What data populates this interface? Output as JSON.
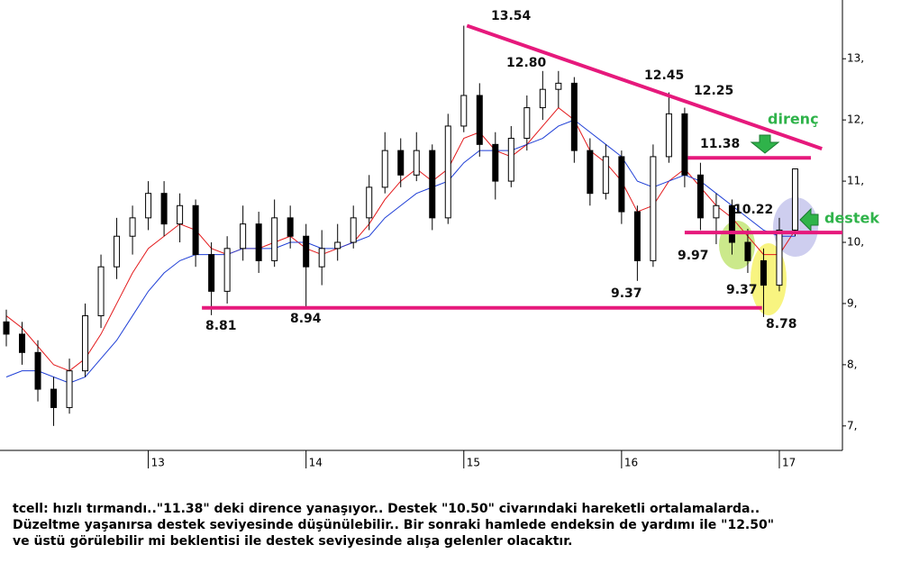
{
  "chart_data": {
    "type": "candlestick",
    "x": [
      12.1,
      12.2,
      12.3,
      12.4,
      12.5,
      12.6,
      12.7,
      12.8,
      12.9,
      13.0,
      13.1,
      13.2,
      13.3,
      13.4,
      13.5,
      13.6,
      13.7,
      13.8,
      13.9,
      14.0,
      14.1,
      14.2,
      14.3,
      14.4,
      14.5,
      14.6,
      14.7,
      14.8,
      14.9,
      15.0,
      15.1,
      15.2,
      15.3,
      15.4,
      15.5,
      15.6,
      15.7,
      15.8,
      15.9,
      16.0,
      16.1,
      16.2,
      16.3,
      16.4,
      16.5,
      16.6,
      16.7,
      16.8,
      16.9,
      17.0,
      17.1
    ],
    "ohlc": [
      [
        8.7,
        8.9,
        8.3,
        8.5
      ],
      [
        8.5,
        8.7,
        8.0,
        8.2
      ],
      [
        8.2,
        8.4,
        7.4,
        7.6
      ],
      [
        7.6,
        7.8,
        7.0,
        7.3
      ],
      [
        7.3,
        8.1,
        7.2,
        7.9
      ],
      [
        7.9,
        9.0,
        7.8,
        8.8
      ],
      [
        8.8,
        9.8,
        8.6,
        9.6
      ],
      [
        9.6,
        10.4,
        9.4,
        10.1
      ],
      [
        10.1,
        10.6,
        9.8,
        10.4
      ],
      [
        10.4,
        11.0,
        10.2,
        10.8
      ],
      [
        10.8,
        11.0,
        10.1,
        10.3
      ],
      [
        10.3,
        10.8,
        10.0,
        10.6
      ],
      [
        10.6,
        10.7,
        9.6,
        9.8
      ],
      [
        9.8,
        10.0,
        8.81,
        9.2
      ],
      [
        9.2,
        10.1,
        9.0,
        9.9
      ],
      [
        9.9,
        10.6,
        9.7,
        10.3
      ],
      [
        10.3,
        10.5,
        9.5,
        9.7
      ],
      [
        9.7,
        10.7,
        9.6,
        10.4
      ],
      [
        10.4,
        10.6,
        9.9,
        10.1
      ],
      [
        10.1,
        10.3,
        8.94,
        9.6
      ],
      [
        9.6,
        10.2,
        9.3,
        9.9
      ],
      [
        9.9,
        10.3,
        9.7,
        10.0
      ],
      [
        10.0,
        10.6,
        9.9,
        10.4
      ],
      [
        10.4,
        11.1,
        10.2,
        10.9
      ],
      [
        10.9,
        11.8,
        10.8,
        11.5
      ],
      [
        11.5,
        11.7,
        10.9,
        11.1
      ],
      [
        11.1,
        11.8,
        11.0,
        11.5
      ],
      [
        11.5,
        11.6,
        10.2,
        10.4
      ],
      [
        10.4,
        12.1,
        10.3,
        11.9
      ],
      [
        11.9,
        13.54,
        11.8,
        12.4
      ],
      [
        12.4,
        12.6,
        11.4,
        11.6
      ],
      [
        11.6,
        11.8,
        10.7,
        11.0
      ],
      [
        11.0,
        11.9,
        10.9,
        11.7
      ],
      [
        11.7,
        12.4,
        11.5,
        12.2
      ],
      [
        12.2,
        12.8,
        12.0,
        12.5
      ],
      [
        12.5,
        12.8,
        12.2,
        12.6
      ],
      [
        12.6,
        12.7,
        11.3,
        11.5
      ],
      [
        11.5,
        11.7,
        10.6,
        10.8
      ],
      [
        10.8,
        11.6,
        10.7,
        11.4
      ],
      [
        11.4,
        11.5,
        10.3,
        10.5
      ],
      [
        10.5,
        10.6,
        9.37,
        9.7
      ],
      [
        9.7,
        11.6,
        9.6,
        11.4
      ],
      [
        11.4,
        12.45,
        11.3,
        12.1
      ],
      [
        12.1,
        12.2,
        10.9,
        11.1
      ],
      [
        11.1,
        11.3,
        10.2,
        10.4
      ],
      [
        10.4,
        10.8,
        9.97,
        10.6
      ],
      [
        10.6,
        10.7,
        9.8,
        10.0
      ],
      [
        10.0,
        10.22,
        9.5,
        9.7
      ],
      [
        9.7,
        9.9,
        8.78,
        9.3
      ],
      [
        9.3,
        10.4,
        9.2,
        10.2
      ],
      [
        10.2,
        11.2,
        10.1,
        11.2
      ]
    ],
    "series": [
      {
        "color": "#e31a1c",
        "values": [
          8.8,
          8.6,
          8.3,
          8.0,
          7.9,
          8.1,
          8.5,
          9.0,
          9.5,
          9.9,
          10.1,
          10.3,
          10.2,
          9.9,
          9.8,
          9.9,
          9.9,
          10.0,
          10.1,
          9.9,
          9.8,
          9.9,
          10.0,
          10.3,
          10.7,
          11.0,
          11.2,
          11.0,
          11.2,
          11.7,
          11.8,
          11.5,
          11.4,
          11.6,
          11.9,
          12.2,
          12.0,
          11.5,
          11.3,
          11.0,
          10.5,
          10.6,
          11.0,
          11.2,
          10.9,
          10.6,
          10.4,
          10.1,
          9.8,
          9.8,
          10.2
        ]
      },
      {
        "color": "#1f3fd6",
        "values": [
          7.8,
          7.9,
          7.9,
          7.8,
          7.7,
          7.8,
          8.1,
          8.4,
          8.8,
          9.2,
          9.5,
          9.7,
          9.8,
          9.8,
          9.8,
          9.9,
          9.9,
          9.9,
          10.0,
          10.0,
          9.9,
          9.9,
          10.0,
          10.1,
          10.4,
          10.6,
          10.8,
          10.9,
          11.0,
          11.3,
          11.5,
          11.5,
          11.5,
          11.6,
          11.7,
          11.9,
          12.0,
          11.8,
          11.6,
          11.4,
          11.0,
          10.9,
          11.0,
          11.1,
          11.0,
          10.8,
          10.6,
          10.4,
          10.2,
          10.1,
          10.1
        ]
      }
    ],
    "lines": [
      {
        "x": [
          15.02,
          17.27
        ],
        "y": [
          13.54,
          11.53
        ],
        "color": "#e6197c"
      },
      {
        "x": [
          16.42,
          17.2
        ],
        "y": [
          11.38,
          11.38
        ],
        "color": "#e6197c"
      },
      {
        "x": [
          16.4,
          17.4
        ],
        "y": [
          10.16,
          10.16
        ],
        "color": "#e6197c"
      },
      {
        "x": [
          13.34,
          16.89
        ],
        "y": [
          8.93,
          8.93
        ],
        "color": "#e6197c"
      }
    ],
    "annotations": [
      "13.54",
      "12.80",
      "12.45",
      "12.25",
      "11.38",
      "10.22",
      "9.97",
      "9.37",
      "9.37",
      "8.81",
      "8.94",
      "8.78",
      "direnç",
      "destek"
    ],
    "xlim": [
      12.06,
      17.4
    ],
    "xticks": [
      13,
      14,
      15,
      16,
      17
    ],
    "ylim": [
      6.6,
      13.96
    ],
    "yticks": [
      {
        "value": 7,
        "label": "7,"
      },
      {
        "value": 8,
        "label": "8,"
      },
      {
        "value": 9,
        "label": "9,"
      },
      {
        "value": 10,
        "label": "10,"
      },
      {
        "value": 11,
        "label": "11,"
      },
      {
        "value": 12,
        "label": "12,"
      },
      {
        "value": 13,
        "label": "13,"
      }
    ]
  },
  "caption": [
    "tcell: hızlı tırmandı..\"11.38\" deki dirence yanaşıyor.. Destek \"10.50\" civarındaki hareketli ortalamalarda..",
    "Düzeltme yaşanırsa destek seviyesinde düşünülebilir.. Bir sonraki hamlede endeksin de yardımı ile \"12.50\"",
    "ve üstü görülebilir mi beklentisi ile destek seviyesinde alışa gelenler olacaktır."
  ]
}
